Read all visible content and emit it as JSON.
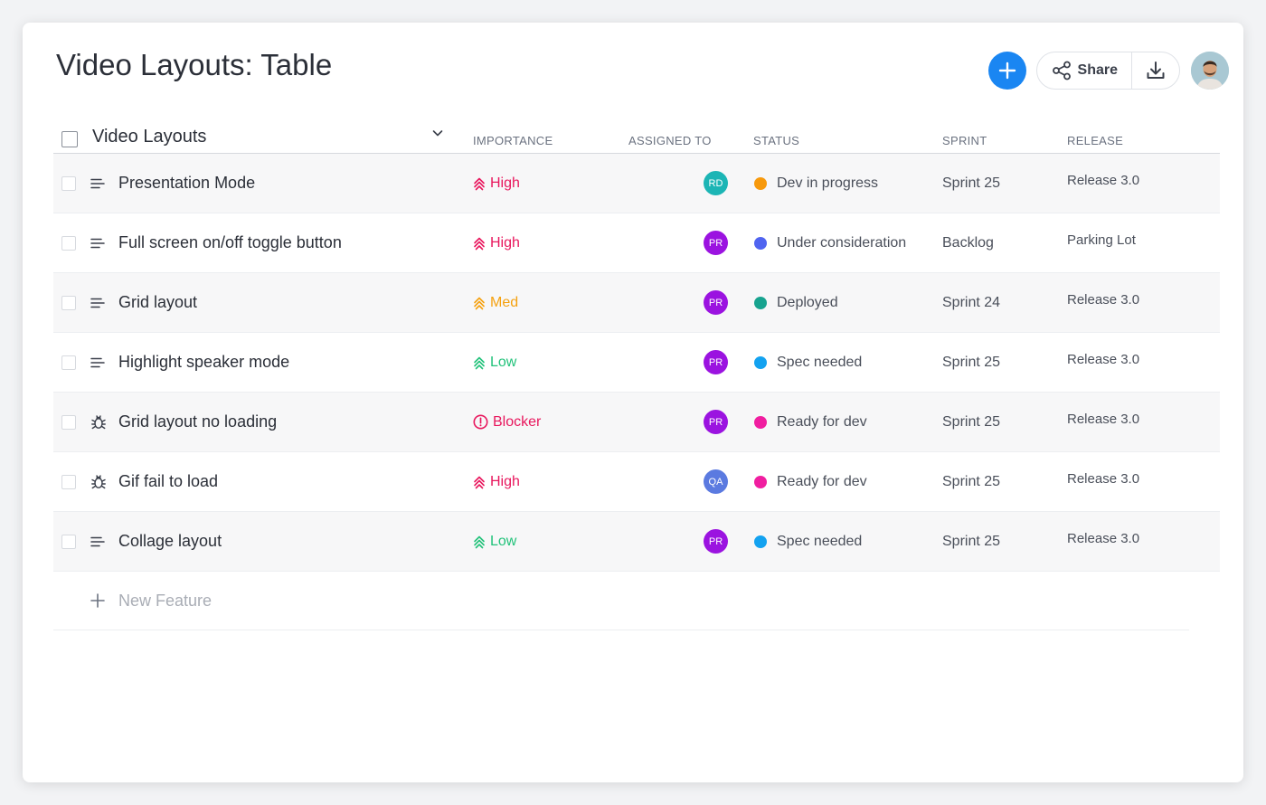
{
  "page": {
    "title": "Video Layouts: Table"
  },
  "toolbar": {
    "share_label": "Share"
  },
  "table": {
    "headers": {
      "title": "Video Layouts",
      "importance": "IMPORTANCE",
      "assigned_to": "ASSIGNED TO",
      "status": "STATUS",
      "sprint": "SPRINT",
      "release": "RELEASE"
    },
    "rows": [
      {
        "type": "feature",
        "title": "Presentation Mode",
        "importance": "High",
        "importance_level": "high",
        "assignee": "RD",
        "assignee_color": "#1cb5b5",
        "status": "Dev in progress",
        "status_color": "#f7990c",
        "sprint": "Sprint 25",
        "release": "Release 3.0"
      },
      {
        "type": "feature",
        "title": "Full screen on/off toggle button",
        "importance": "High",
        "importance_level": "high",
        "assignee": "PR",
        "assignee_color": "#9b13e0",
        "status": "Under consideration",
        "status_color": "#5064f0",
        "sprint": "Backlog",
        "release": "Parking Lot"
      },
      {
        "type": "feature",
        "title": "Grid layout",
        "importance": "Med",
        "importance_level": "med",
        "assignee": "PR",
        "assignee_color": "#9b13e0",
        "status": "Deployed",
        "status_color": "#17a38f",
        "sprint": "Sprint 24",
        "release": "Release 3.0"
      },
      {
        "type": "feature",
        "title": "Highlight speaker mode",
        "importance": "Low",
        "importance_level": "low",
        "assignee": "PR",
        "assignee_color": "#9b13e0",
        "status": "Spec needed",
        "status_color": "#13a2f0",
        "sprint": "Sprint 25",
        "release": "Release 3.0"
      },
      {
        "type": "bug",
        "title": "Grid layout no loading",
        "importance": "Blocker",
        "importance_level": "blocker",
        "assignee": "PR",
        "assignee_color": "#9b13e0",
        "status": "Ready for dev",
        "status_color": "#f01ea0",
        "sprint": "Sprint 25",
        "release": "Release 3.0"
      },
      {
        "type": "bug",
        "title": "Gif fail to load",
        "importance": "High",
        "importance_level": "high",
        "assignee": "QA",
        "assignee_color": "#5b7ae0",
        "status": "Ready for dev",
        "status_color": "#f01ea0",
        "sprint": "Sprint 25",
        "release": "Release 3.0"
      },
      {
        "type": "feature",
        "title": "Collage layout",
        "importance": "Low",
        "importance_level": "low",
        "assignee": "PR",
        "assignee_color": "#9b13e0",
        "status": "Spec needed",
        "status_color": "#13a2f0",
        "sprint": "Sprint 25",
        "release": "Release 3.0"
      }
    ],
    "new_item_label": "New Feature"
  },
  "colors": {
    "accent": "#1a86f2",
    "importance_high": "#e8175d",
    "importance_med": "#f5a10f",
    "importance_low": "#22c27a",
    "importance_blocker": "#e8175d"
  },
  "icons": {
    "add": "plus-icon",
    "share": "share-icon",
    "download": "download-icon",
    "feature": "feature-lines-icon",
    "bug": "bug-icon",
    "chevron": "chevron-down-icon"
  }
}
